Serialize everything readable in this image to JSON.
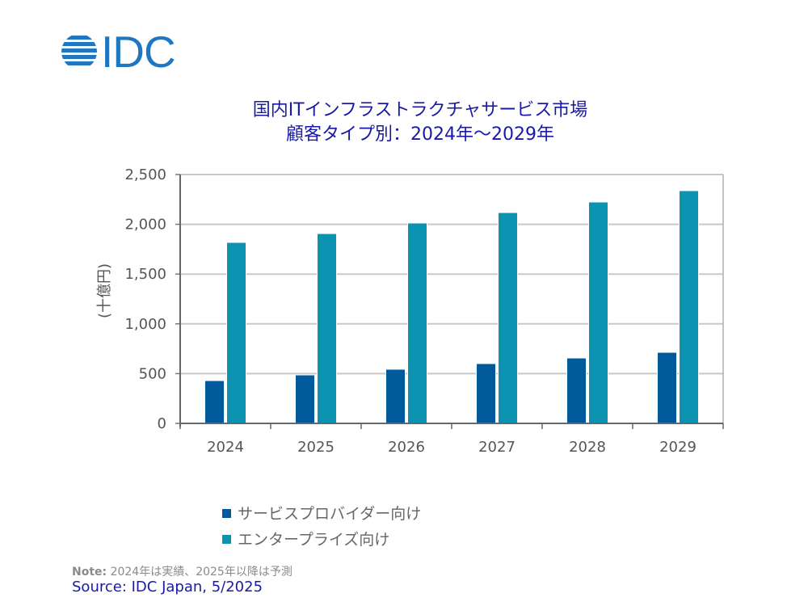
{
  "logo": {
    "text": "IDC",
    "color": "#1f77c2"
  },
  "title_line1": "国内ITインフラストラクチャサービス市場",
  "title_line2": "顧客タイプ別：2024年～2029年",
  "chart_data": {
    "type": "bar",
    "title": "国内ITインフラストラクチャサービス市場 顧客タイプ別：2024年～2029年",
    "xlabel": "",
    "ylabel": "(十億円)",
    "categories": [
      "2024",
      "2025",
      "2026",
      "2027",
      "2028",
      "2029"
    ],
    "series": [
      {
        "name": "サービスプロバイダー向け",
        "color": "#005a9c",
        "values": [
          430,
          487,
          544,
          601,
          657,
          714
        ]
      },
      {
        "name": "エンタープライズ向け",
        "color": "#0b93b1",
        "values": [
          1818,
          1907,
          2013,
          2118,
          2224,
          2338
        ]
      }
    ],
    "ylim": [
      0,
      2500
    ],
    "yticks": [
      0,
      500,
      1000,
      1500,
      2000,
      2500
    ],
    "ytick_labels": [
      "0",
      "500",
      "1,000",
      "1,500",
      "2,000",
      "2,500"
    ],
    "grid": true,
    "legend_position": "bottom-center"
  },
  "note_label": "Note:",
  "note_text": " 2024年は実績、2025年以降は予測",
  "source": "Source: IDC Japan, 5/2025"
}
